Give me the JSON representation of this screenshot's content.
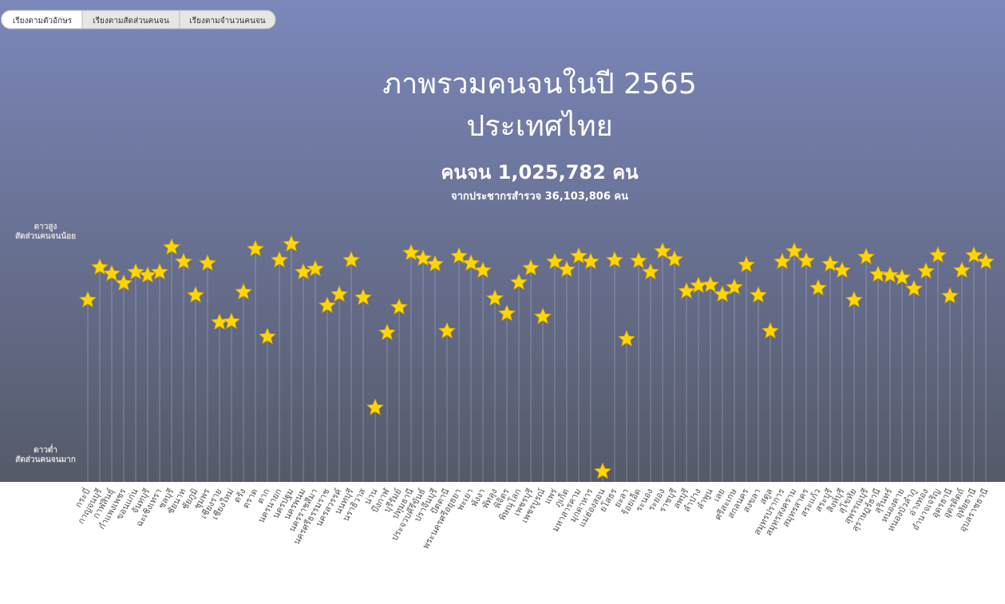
{
  "tabs": [
    "เรียงตามตัวอักษร",
    "เรียงตามสัดส่วนคนจน",
    "เรียงตามจำนวนคนจน"
  ],
  "chart_data": {
    "type": "star",
    "title": "ภาพรวมคนจนในปี 2565",
    "subtitle": "ประเทศไทย",
    "headline": "คนจน 1,025,782 คน",
    "note": "จากประชากรสำรวจ 36,103,806 คน",
    "top_label": [
      "ดาวสูง",
      "สัดส่วนคนจนน้อย"
    ],
    "bottom_label": [
      "ดาวต่ำ",
      "สัดส่วนคนจนมาก"
    ],
    "color": "#ffd700",
    "ylim": [
      0,
      30
    ],
    "inverted": true,
    "categories": [
      "กระบี่",
      "กาญจนบุรี",
      "กาฬสินธุ์",
      "กำแพงเพชร",
      "ขอนแก่น",
      "จันทบุรี",
      "ฉะเชิงเทรา",
      "ชลบุรี",
      "ชัยนาท",
      "ชัยภูมิ",
      "ชุมพร",
      "เชียงราย",
      "เชียงใหม่",
      "ตรัง",
      "ตราด",
      "ตาก",
      "นครนายก",
      "นครปฐม",
      "นครพนม",
      "นครราชสีมา",
      "นครศรีธรรมราช",
      "นครสวรรค์",
      "นนทบุรี",
      "นราธิวาส",
      "น่าน",
      "บึงกาฬ",
      "บุรีรัมย์",
      "ปทุมธานี",
      "ประจวบคีรีขันธ์",
      "ปราจีนบุรี",
      "ปัตตานี",
      "พระนครศรีอยุธยา",
      "พะเยา",
      "พังงา",
      "พัทลุง",
      "พิจิตร",
      "พิษณุโลก",
      "เพชรบุรี",
      "เพชรบูรณ์",
      "แพร่",
      "ภูเก็ต",
      "มหาสารคาม",
      "มุกดาหาร",
      "แม่ฮ่องสอน",
      "ยโสธร",
      "ยะลา",
      "ร้อยเอ็ด",
      "ระนอง",
      "ระยอง",
      "ราชบุรี",
      "ลพบุรี",
      "ลำปาง",
      "ลำพูน",
      "เลย",
      "ศรีสะเกษ",
      "สกลนคร",
      "สงขลา",
      "สตูล",
      "สมุทรปราการ",
      "สมุทรสงคราม",
      "สมุทรสาคร",
      "สระแก้ว",
      "สระบุรี",
      "สิงห์บุรี",
      "สุโขทัย",
      "สุพรรณบุรี",
      "สุราษฎร์ธานี",
      "สุรินทร์",
      "หนองคาย",
      "หนองบัวลำภู",
      "อ่างทอง",
      "อำนาจเจริญ",
      "อุดรธานี",
      "อุตรดิตถ์",
      "อุทัยธานี",
      "อุบลราชธานี"
    ],
    "values": [
      7.6,
      3.5,
      4.3,
      5.5,
      4.1,
      4.5,
      4.1,
      1.0,
      2.8,
      7.0,
      3.0,
      10.4,
      10.3,
      6.6,
      1.2,
      12.2,
      2.6,
      0.6,
      4.1,
      3.7,
      8.3,
      6.9,
      2.6,
      7.3,
      21.1,
      11.7,
      8.5,
      1.7,
      2.4,
      3.1,
      11.5,
      2.1,
      3.0,
      3.9,
      7.4,
      9.3,
      5.4,
      3.6,
      9.7,
      2.8,
      3.8,
      2.1,
      2.8,
      29.1,
      2.6,
      12.5,
      2.7,
      4.1,
      1.5,
      2.5,
      6.5,
      5.8,
      5.7,
      6.9,
      6.0,
      3.2,
      7.0,
      11.5,
      2.8,
      1.5,
      2.7,
      6.1,
      3.1,
      3.9,
      7.6,
      2.2,
      4.4,
      4.5,
      4.8,
      6.2,
      4.0,
      2.0,
      7.1,
      3.9,
      2.0,
      2.8
    ]
  }
}
